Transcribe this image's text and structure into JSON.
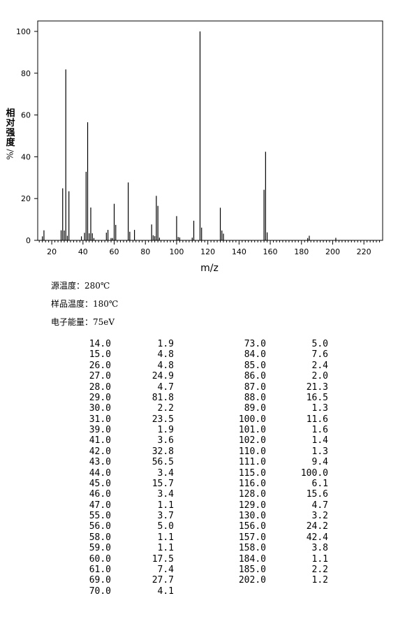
{
  "chart_data": {
    "type": "bar",
    "xlabel": "m/z",
    "ylabel_chars": [
      "相",
      "对",
      "强",
      "度"
    ],
    "ylabel_unit": "%/",
    "xlim": [
      11,
      232
    ],
    "ylim": [
      0,
      105
    ],
    "xticks": [
      20,
      40,
      60,
      80,
      100,
      120,
      140,
      160,
      180,
      200,
      220
    ],
    "yticks": [
      0,
      20,
      40,
      60,
      80,
      100
    ],
    "grid": false,
    "color": "#000000",
    "peaks": [
      {
        "mz": "14.0",
        "intensity": "1.9"
      },
      {
        "mz": "15.0",
        "intensity": "4.8"
      },
      {
        "mz": "26.0",
        "intensity": "4.8"
      },
      {
        "mz": "27.0",
        "intensity": "24.9"
      },
      {
        "mz": "28.0",
        "intensity": "4.7"
      },
      {
        "mz": "29.0",
        "intensity": "81.8"
      },
      {
        "mz": "30.0",
        "intensity": "2.2"
      },
      {
        "mz": "31.0",
        "intensity": "23.5"
      },
      {
        "mz": "39.0",
        "intensity": "1.9"
      },
      {
        "mz": "41.0",
        "intensity": "3.6"
      },
      {
        "mz": "42.0",
        "intensity": "32.8"
      },
      {
        "mz": "43.0",
        "intensity": "56.5"
      },
      {
        "mz": "44.0",
        "intensity": "3.4"
      },
      {
        "mz": "45.0",
        "intensity": "15.7"
      },
      {
        "mz": "46.0",
        "intensity": "3.4"
      },
      {
        "mz": "47.0",
        "intensity": "1.1"
      },
      {
        "mz": "55.0",
        "intensity": "3.7"
      },
      {
        "mz": "56.0",
        "intensity": "5.0"
      },
      {
        "mz": "58.0",
        "intensity": "1.1"
      },
      {
        "mz": "59.0",
        "intensity": "1.1"
      },
      {
        "mz": "60.0",
        "intensity": "17.5"
      },
      {
        "mz": "61.0",
        "intensity": "7.4"
      },
      {
        "mz": "69.0",
        "intensity": "27.7"
      },
      {
        "mz": "70.0",
        "intensity": "4.1"
      },
      {
        "mz": "73.0",
        "intensity": "5.0"
      },
      {
        "mz": "84.0",
        "intensity": "7.6"
      },
      {
        "mz": "85.0",
        "intensity": "2.4"
      },
      {
        "mz": "86.0",
        "intensity": "2.0"
      },
      {
        "mz": "87.0",
        "intensity": "21.3"
      },
      {
        "mz": "88.0",
        "intensity": "16.5"
      },
      {
        "mz": "89.0",
        "intensity": "1.3"
      },
      {
        "mz": "100.0",
        "intensity": "11.6"
      },
      {
        "mz": "101.0",
        "intensity": "1.6"
      },
      {
        "mz": "102.0",
        "intensity": "1.4"
      },
      {
        "mz": "110.0",
        "intensity": "1.3"
      },
      {
        "mz": "111.0",
        "intensity": "9.4"
      },
      {
        "mz": "115.0",
        "intensity": "100.0"
      },
      {
        "mz": "116.0",
        "intensity": "6.1"
      },
      {
        "mz": "128.0",
        "intensity": "15.6"
      },
      {
        "mz": "129.0",
        "intensity": "4.7"
      },
      {
        "mz": "130.0",
        "intensity": "3.2"
      },
      {
        "mz": "156.0",
        "intensity": "24.2"
      },
      {
        "mz": "157.0",
        "intensity": "42.4"
      },
      {
        "mz": "158.0",
        "intensity": "3.8"
      },
      {
        "mz": "184.0",
        "intensity": "1.1"
      },
      {
        "mz": "185.0",
        "intensity": "2.2"
      },
      {
        "mz": "202.0",
        "intensity": "1.2"
      }
    ]
  },
  "conditions": [
    "源温度：280℃",
    "样品温度：180℃",
    "电子能量：75eV"
  ]
}
